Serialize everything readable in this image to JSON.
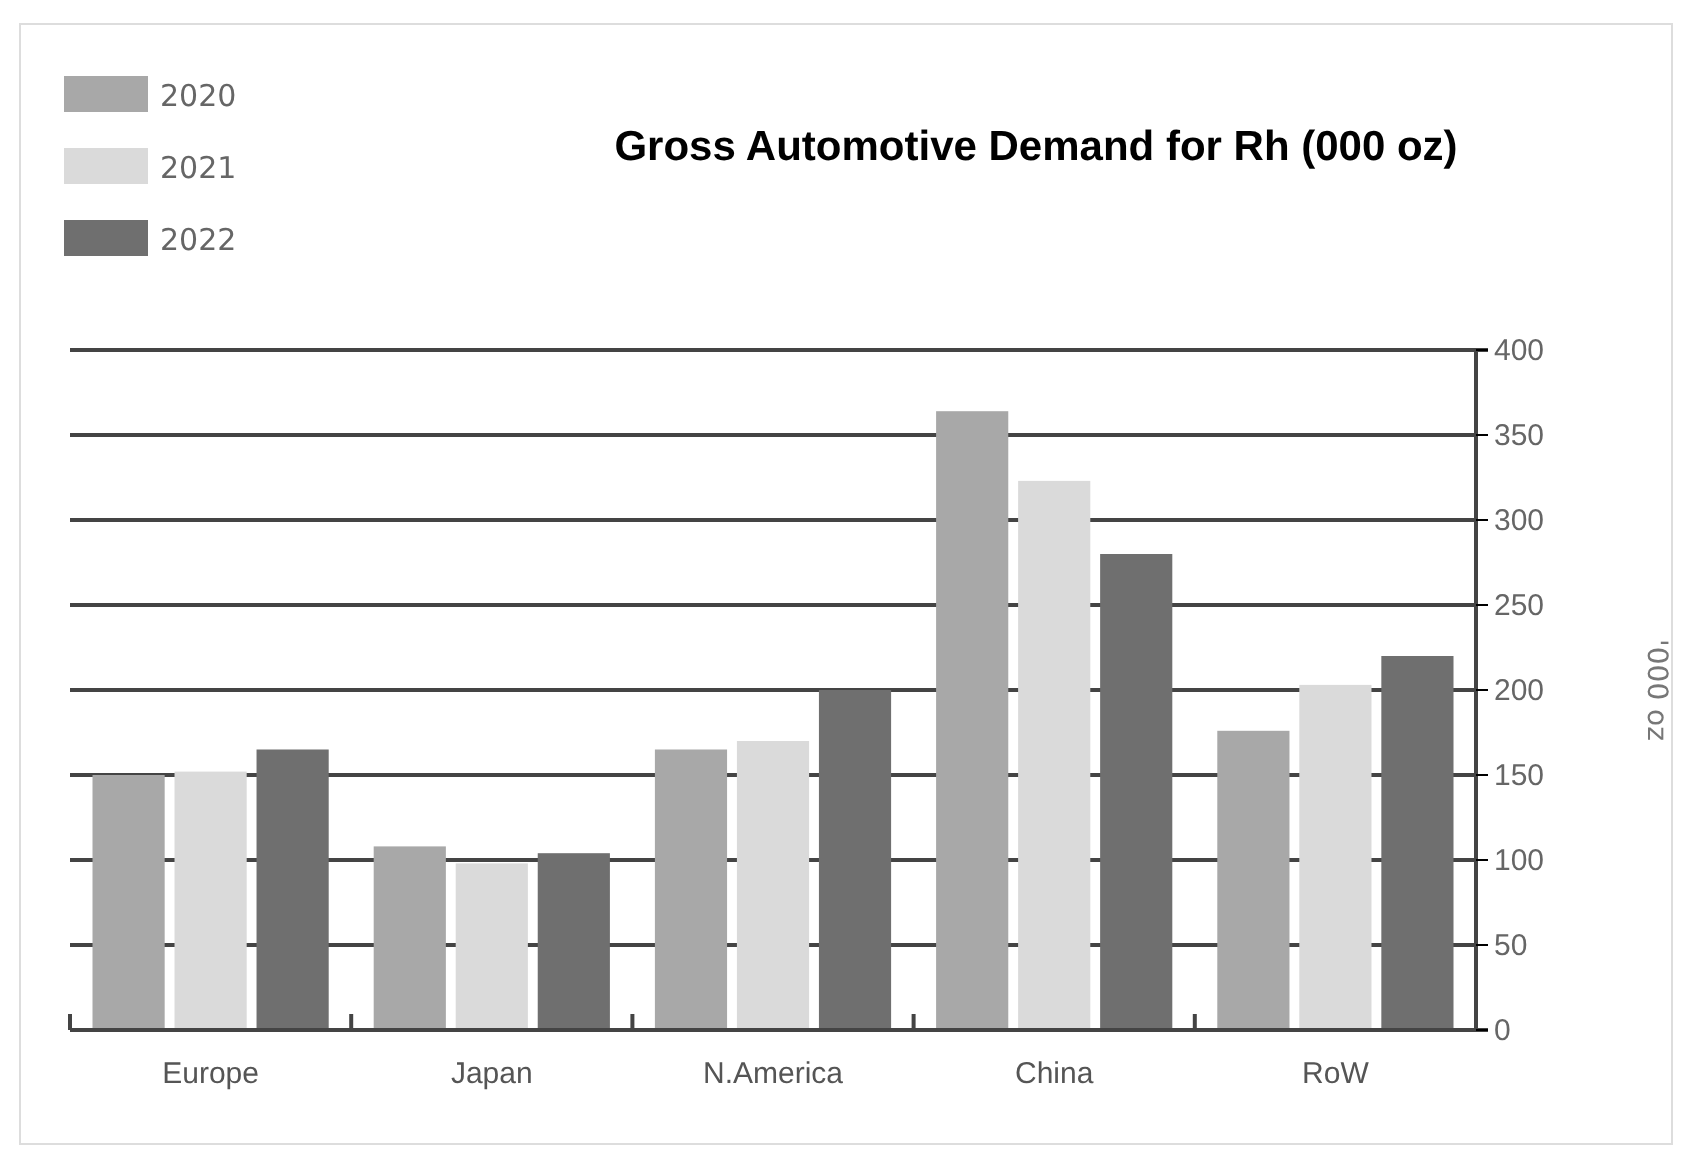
{
  "chart_data": {
    "type": "bar",
    "title": "Gross Automotive Demand for Rh (000 oz)",
    "y2label": "'000 oz",
    "categories": [
      "Europe",
      "Japan",
      "N.America",
      "China",
      "RoW"
    ],
    "series": [
      {
        "name": "2020",
        "color": "#a8a8a8",
        "values": [
          150,
          108,
          165,
          364,
          176
        ],
        "axis": "y2"
      },
      {
        "name": "2021",
        "color": "#dadada",
        "values": [
          152,
          98,
          170,
          323,
          203
        ],
        "axis": "y2"
      },
      {
        "name": "2022",
        "color": "#6f6f6f",
        "values": [
          165,
          104,
          200,
          280,
          220
        ],
        "axis": "y2"
      }
    ],
    "y2lim": [
      0,
      400
    ],
    "y2ticks": [
      0,
      50,
      100,
      150,
      200,
      250,
      300,
      350,
      400
    ],
    "grid": "y",
    "legend": "top left"
  }
}
